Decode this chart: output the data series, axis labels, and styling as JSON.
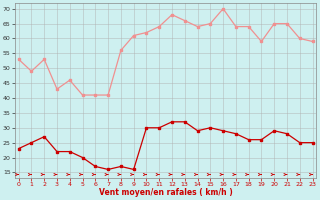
{
  "hours": [
    0,
    1,
    2,
    3,
    4,
    5,
    6,
    7,
    8,
    9,
    10,
    11,
    12,
    13,
    14,
    15,
    16,
    17,
    18,
    19,
    20,
    21,
    22,
    23
  ],
  "rafales": [
    53,
    49,
    53,
    43,
    46,
    41,
    41,
    41,
    56,
    61,
    62,
    64,
    68,
    66,
    64,
    65,
    70,
    64,
    64,
    59,
    65,
    65,
    60,
    59
  ],
  "moyen": [
    23,
    25,
    27,
    22,
    22,
    20,
    17,
    16,
    17,
    16,
    30,
    30,
    32,
    32,
    29,
    30,
    29,
    28,
    26,
    26,
    29,
    28,
    25,
    25
  ],
  "wind_dir": [
    1,
    1,
    1,
    1,
    1,
    1,
    2,
    1,
    1,
    1,
    1,
    1,
    1,
    1,
    1,
    1,
    1,
    1,
    1,
    2,
    2,
    2,
    2,
    2
  ],
  "background_color": "#cef0f0",
  "grid_color": "#b0b0b0",
  "line_color_rafales": "#f09090",
  "line_color_moyen": "#cc0000",
  "xlabel": "Vent moyen/en rafales ( km/h )",
  "ylim": [
    13,
    72
  ],
  "yticks": [
    15,
    20,
    25,
    30,
    35,
    40,
    45,
    50,
    55,
    60,
    65,
    70
  ],
  "xlim": [
    -0.3,
    23.3
  ],
  "xticks": [
    0,
    1,
    2,
    3,
    4,
    5,
    6,
    7,
    8,
    9,
    10,
    11,
    12,
    13,
    14,
    15,
    16,
    17,
    18,
    19,
    20,
    21,
    22,
    23
  ]
}
